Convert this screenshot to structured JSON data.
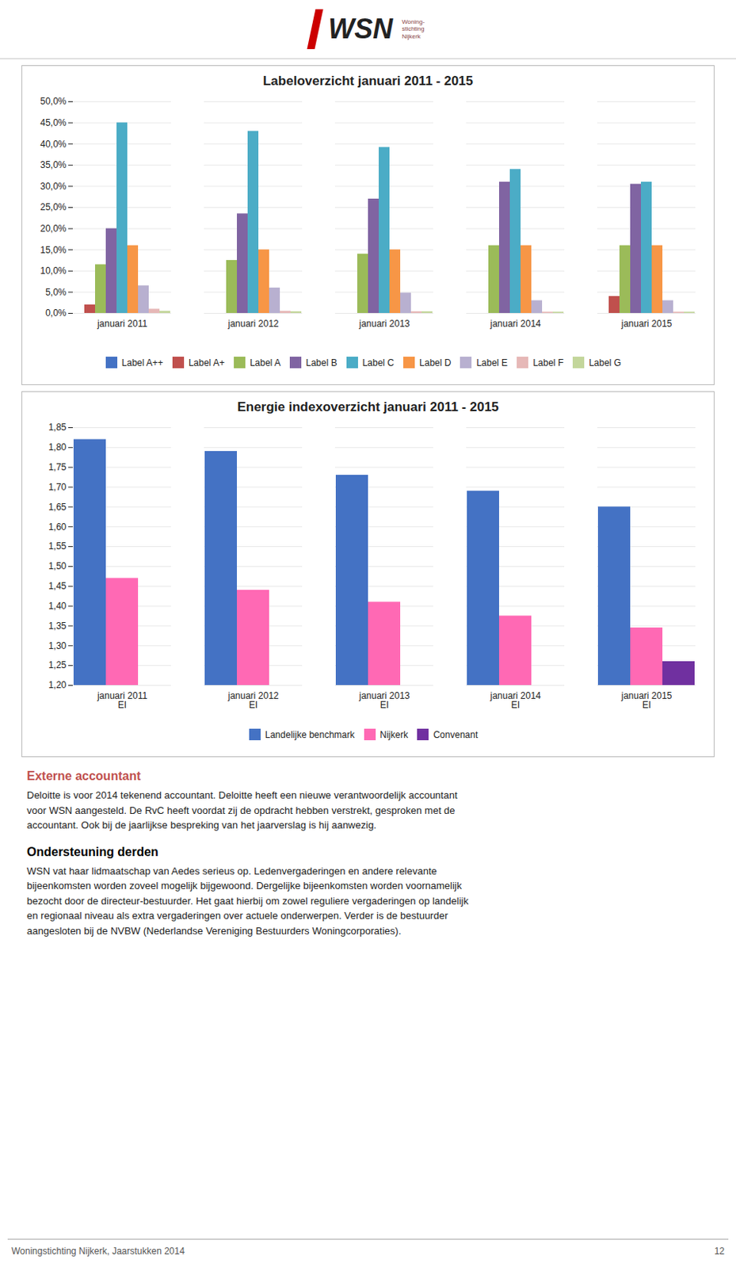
{
  "header": [
    "WSN",
    "Woning-",
    "stichting",
    "Nijkerk"
  ],
  "chart_data": [
    {
      "type": "bar",
      "title": "Labeloverzicht januari 2011 - 2015",
      "categories": [
        "januari 2011",
        "januari 2012",
        "januari 2013",
        "januari 2014",
        "januari 2015"
      ],
      "series": [
        {
          "name": "Label A++",
          "color": "#4472C4",
          "values": [
            0.0,
            0.0,
            0.0,
            0.0,
            0.0
          ]
        },
        {
          "name": "Label A+",
          "color": "#C0504D",
          "values": [
            0.02,
            0.0,
            0.0,
            0.0,
            0.04
          ]
        },
        {
          "name": "Label A",
          "color": "#9BBB59",
          "values": [
            0.115,
            0.125,
            0.14,
            0.16,
            0.16
          ]
        },
        {
          "name": "Label B",
          "color": "#8064A2",
          "values": [
            0.2,
            0.235,
            0.27,
            0.31,
            0.305
          ]
        },
        {
          "name": "Label C",
          "color": "#4BACC6",
          "values": [
            0.45,
            0.43,
            0.392,
            0.34,
            0.31
          ]
        },
        {
          "name": "Label D",
          "color": "#F79646",
          "values": [
            0.16,
            0.15,
            0.15,
            0.16,
            0.16
          ]
        },
        {
          "name": "Label E",
          "color": "#B8B0D0",
          "values": [
            0.065,
            0.06,
            0.048,
            0.03,
            0.03
          ]
        },
        {
          "name": "Label F",
          "color": "#E6B8B7",
          "values": [
            0.01,
            0.005,
            0.004,
            0.003,
            0.003
          ]
        },
        {
          "name": "Label G",
          "color": "#C3D69B",
          "values": [
            0.005,
            0.004,
            0.004,
            0.003,
            0.003
          ]
        }
      ],
      "ylim": [
        0.0,
        0.5
      ],
      "yticks": [
        {
          "value": 0.0,
          "label": "0,0%"
        },
        {
          "value": 0.05,
          "label": "5,0%"
        },
        {
          "value": 0.1,
          "label": "10,0%"
        },
        {
          "value": 0.15,
          "label": "15,0%"
        },
        {
          "value": 0.2,
          "label": "20,0%"
        },
        {
          "value": 0.25,
          "label": "25,0%"
        },
        {
          "value": 0.3,
          "label": "30,0%"
        },
        {
          "value": 0.35,
          "label": "35,0%"
        },
        {
          "value": 0.4,
          "label": "40,0%"
        },
        {
          "value": 0.45,
          "label": "45,0%"
        },
        {
          "value": 0.5,
          "label": "50,0%"
        }
      ],
      "grid": true,
      "legend": "bottom"
    },
    {
      "type": "bar",
      "title": "Energie indexoverzicht januari 2011 - 2015",
      "categories": [
        "januari 2011\nEI",
        "januari 2012\nEI",
        "januari 2013\nEI",
        "januari 2014\nEI",
        "januari 2015\nEI"
      ],
      "series": [
        {
          "name": "Landelijke benchmark",
          "color": "#4472C4",
          "values": [
            1.82,
            1.79,
            1.73,
            1.69,
            1.65
          ]
        },
        {
          "name": "Nijkerk",
          "color": "#FF69B4",
          "values": [
            1.47,
            1.44,
            1.41,
            1.375,
            1.345
          ]
        },
        {
          "name": "Convenant",
          "color": "#7030A0",
          "values": [
            null,
            null,
            null,
            null,
            1.26
          ]
        }
      ],
      "ylim": [
        1.2,
        1.85
      ],
      "yticks": [
        {
          "value": 1.2,
          "label": "1,20"
        },
        {
          "value": 1.25,
          "label": "1,25"
        },
        {
          "value": 1.3,
          "label": "1,30"
        },
        {
          "value": 1.35,
          "label": "1,35"
        },
        {
          "value": 1.4,
          "label": "1,40"
        },
        {
          "value": 1.45,
          "label": "1,45"
        },
        {
          "value": 1.5,
          "label": "1,50"
        },
        {
          "value": 1.55,
          "label": "1,55"
        },
        {
          "value": 1.6,
          "label": "1,60"
        },
        {
          "value": 1.65,
          "label": "1,65"
        },
        {
          "value": 1.7,
          "label": "1,70"
        },
        {
          "value": 1.75,
          "label": "1,75"
        },
        {
          "value": 1.8,
          "label": "1,80"
        },
        {
          "value": 1.85,
          "label": "1,85"
        }
      ],
      "grid": true,
      "legend": "bottom"
    }
  ],
  "sections": [
    {
      "title": "Externe accountant",
      "color": "#C0504D",
      "lines": [
        "Deloitte is voor 2014 tekenend accountant. Deloitte heeft een nieuwe verantwoordelijk accountant",
        "voor WSN aangesteld. De RvC heeft voordat zij de opdracht hebben verstrekt, gesproken met de",
        "accountant. Ook bij de jaarlijkse bespreking van het jaarverslag is hij aanwezig."
      ]
    },
    {
      "title": "Ondersteuning derden",
      "color": "#000000",
      "lines": [
        "WSN vat haar lidmaatschap van Aedes serieus op. Ledenvergaderingen en andere relevante",
        "bijeenkomsten worden zoveel mogelijk bijgewoond. Dergelijke bijeenkomsten worden voornamelijk",
        "bezocht door de directeur-bestuurder. Het gaat hierbij om zowel reguliere vergaderingen op landelijk",
        "en regionaal niveau als extra vergaderingen over actuele onderwerpen. Verder is de bestuurder",
        "aangesloten bij de NVBW (Nederlandse Vereniging Bestuurders Woningcorporaties)."
      ]
    }
  ],
  "footer": [
    "Woningstichting Nijkerk, Jaarstukken 2014",
    "12"
  ]
}
